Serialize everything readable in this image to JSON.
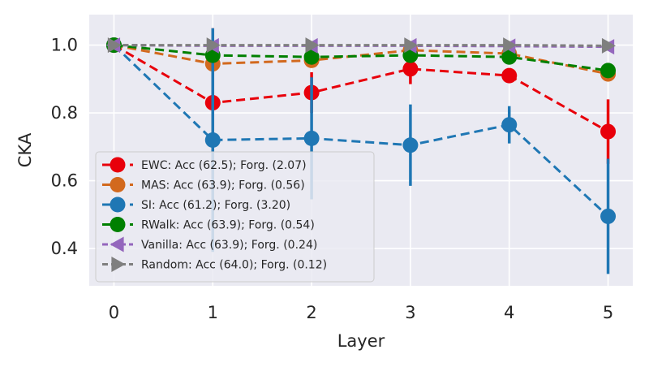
{
  "chart_data": {
    "type": "line",
    "xlabel": "Layer",
    "ylabel": "CKA",
    "x": [
      0,
      1,
      2,
      3,
      4,
      5
    ],
    "xlim": [
      -0.25,
      5.25
    ],
    "ylim": [
      0.29,
      1.09
    ],
    "xticks": [
      "0",
      "1",
      "2",
      "3",
      "4",
      "5"
    ],
    "yticks": [
      "0.4",
      "0.6",
      "0.8",
      "1.0"
    ],
    "ytick_values": [
      0.4,
      0.6,
      0.8,
      1.0
    ],
    "grid": true,
    "background": "#EAEAF2",
    "legend_position": "lower-left",
    "series": [
      {
        "name": "EWC: Acc (62.5); Forg. (2.07)",
        "color": "#E8000B",
        "marker": "circle",
        "values": [
          1.0,
          0.83,
          0.86,
          0.93,
          0.91,
          0.745
        ],
        "err": [
          0,
          0.22,
          0.06,
          0.045,
          0.02,
          0.095
        ]
      },
      {
        "name": "MAS: Acc (63.9); Forg. (0.56)",
        "color": "#D2691E",
        "marker": "circle",
        "values": [
          1.0,
          0.945,
          0.955,
          0.985,
          0.975,
          0.915
        ],
        "err": [
          0,
          0.02,
          0.015,
          0.01,
          0.01,
          0.02
        ]
      },
      {
        "name": "SI: Acc (61.2); Forg. (3.20)",
        "color": "#1F77B4",
        "marker": "circle",
        "values": [
          1.0,
          0.72,
          0.725,
          0.705,
          0.765,
          0.495
        ],
        "err": [
          0,
          0.33,
          0.18,
          0.12,
          0.055,
          0.17
        ]
      },
      {
        "name": "RWalk: Acc (63.9); Forg. (0.54)",
        "color": "#008000",
        "marker": "circle",
        "values": [
          1.0,
          0.97,
          0.965,
          0.97,
          0.965,
          0.925
        ],
        "err": [
          0,
          0.01,
          0.01,
          0.01,
          0.01,
          0.02
        ]
      },
      {
        "name": "Vanilla: Acc (63.9); Forg. (0.24)",
        "color": "#9467BD",
        "marker": "triangle-left",
        "values": [
          1.0,
          0.998,
          0.998,
          0.998,
          0.997,
          0.995
        ],
        "err": [
          0,
          0.003,
          0.003,
          0.003,
          0.003,
          0.003
        ]
      },
      {
        "name": "Random: Acc (64.0); Forg. (0.12)",
        "color": "#7F7F7F",
        "marker": "triangle-right",
        "values": [
          1.0,
          1.0,
          1.0,
          1.0,
          1.0,
          0.998
        ],
        "err": [
          0,
          0.002,
          0.002,
          0.002,
          0.002,
          0.002
        ]
      }
    ]
  }
}
